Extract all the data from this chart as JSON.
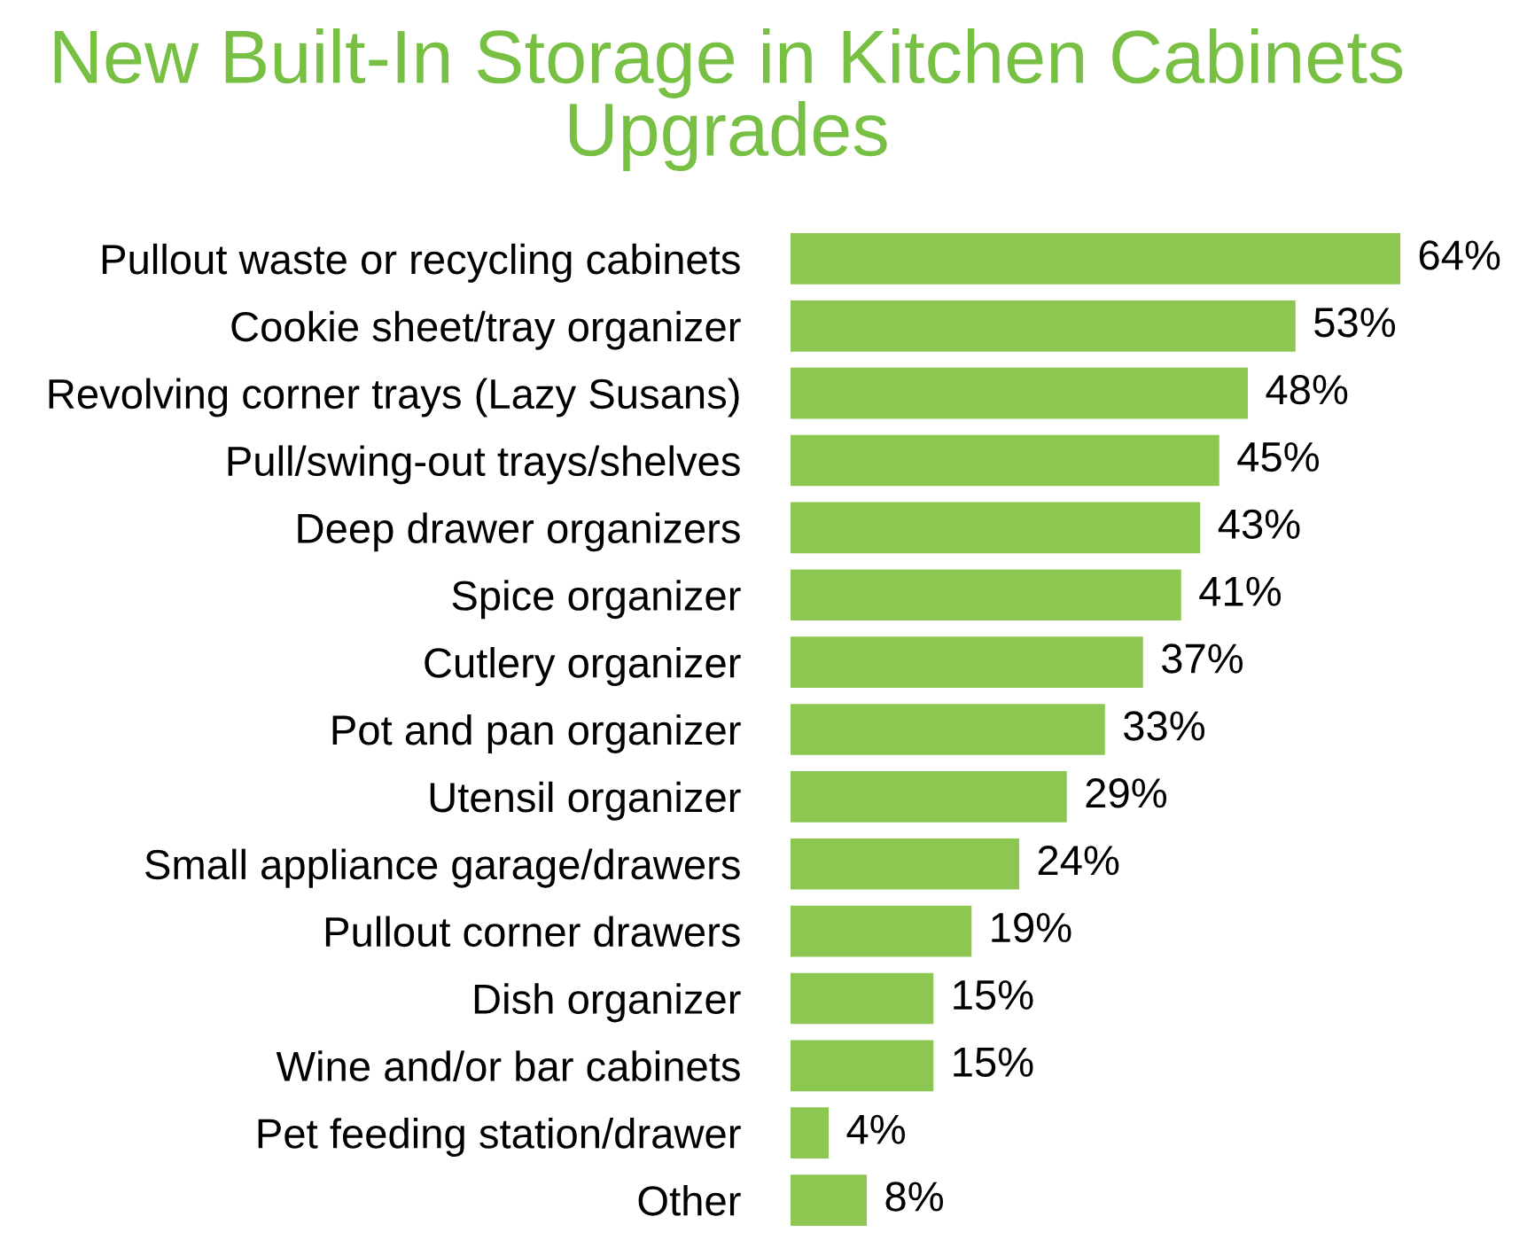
{
  "chart_data": {
    "type": "bar",
    "orientation": "horizontal",
    "title": "New Built-In Storage in Kitchen Cabinets Upgrades",
    "categories": [
      "Pullout waste or recycling cabinets",
      "Cookie sheet/tray organizer",
      "Revolving corner trays (Lazy Susans)",
      "Pull/swing-out trays/shelves",
      "Deep drawer organizers",
      "Spice organizer",
      "Cutlery organizer",
      "Pot and pan organizer",
      "Utensil organizer",
      "Small appliance garage/drawers",
      "Pullout corner drawers",
      "Dish organizer",
      "Wine and/or bar cabinets",
      "Pet feeding station/drawer",
      "Other"
    ],
    "values": [
      64,
      53,
      48,
      45,
      43,
      41,
      37,
      33,
      29,
      24,
      19,
      15,
      15,
      4,
      8
    ],
    "value_labels": [
      "64%",
      "53%",
      "48%",
      "45%",
      "43%",
      "41%",
      "37%",
      "33%",
      "29%",
      "24%",
      "19%",
      "15%",
      "15%",
      "4%",
      "8%"
    ],
    "color": "#8cc752"
  }
}
